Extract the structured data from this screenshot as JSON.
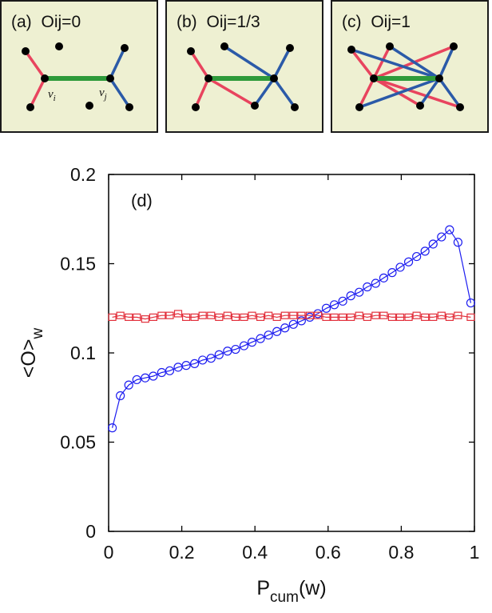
{
  "panels": [
    {
      "label": "(a)",
      "overlap_label": "Oij=0",
      "overlap": 0,
      "node_i_label": "v",
      "node_i_sub": "i",
      "node_j_label": "v",
      "node_j_sub": "j"
    },
    {
      "label": "(b)",
      "overlap_label": "Oij=1/3",
      "overlap": 0.3333
    },
    {
      "label": "(c)",
      "overlap_label": "Oij=1",
      "overlap": 1
    }
  ],
  "colors": {
    "panel_bg": "#eef0d2",
    "central_edge": "#2e9a3a",
    "node_i_edges": "#e8445e",
    "node_j_edges": "#2b5aa8",
    "series_1": "#1d1df0",
    "series_2": "#e2303c"
  },
  "chart_data": {
    "type": "line",
    "panel_label": "(d)",
    "xlabel": "P",
    "xlabel_sub": "cum",
    "xlabel_suffix": "(w)",
    "ylabel": "<O>",
    "ylabel_sub": "w",
    "xlim": [
      0,
      1
    ],
    "ylim": [
      0,
      0.2
    ],
    "xticks": [
      0,
      0.2,
      0.4,
      0.6,
      0.8,
      1
    ],
    "xtick_labels": [
      "0",
      "0.2",
      "0.4",
      "0.6",
      "0.8",
      "1"
    ],
    "yticks": [
      0,
      0.05,
      0.1,
      0.15,
      0.2
    ],
    "ytick_labels": [
      "0",
      "0.05",
      "0.1",
      "0.15",
      "0.2"
    ],
    "grid": false,
    "series": [
      {
        "marker": "circle",
        "color": "#1d1df0",
        "x": [
          0.01,
          0.032,
          0.055,
          0.077,
          0.1,
          0.122,
          0.145,
          0.167,
          0.19,
          0.212,
          0.235,
          0.257,
          0.28,
          0.302,
          0.325,
          0.347,
          0.37,
          0.392,
          0.415,
          0.437,
          0.46,
          0.482,
          0.505,
          0.527,
          0.55,
          0.572,
          0.595,
          0.617,
          0.64,
          0.662,
          0.685,
          0.707,
          0.73,
          0.752,
          0.775,
          0.797,
          0.82,
          0.842,
          0.865,
          0.887,
          0.91,
          0.932,
          0.955,
          0.99
        ],
        "y": [
          0.058,
          0.076,
          0.082,
          0.085,
          0.086,
          0.087,
          0.089,
          0.09,
          0.092,
          0.093,
          0.094,
          0.096,
          0.097,
          0.099,
          0.101,
          0.102,
          0.104,
          0.106,
          0.108,
          0.11,
          0.112,
          0.114,
          0.116,
          0.118,
          0.12,
          0.122,
          0.125,
          0.127,
          0.129,
          0.132,
          0.134,
          0.137,
          0.139,
          0.142,
          0.145,
          0.148,
          0.151,
          0.154,
          0.157,
          0.161,
          0.165,
          0.169,
          0.162,
          0.128
        ]
      },
      {
        "marker": "square",
        "color": "#e2303c",
        "x": [
          0.01,
          0.032,
          0.055,
          0.077,
          0.1,
          0.122,
          0.145,
          0.167,
          0.19,
          0.212,
          0.235,
          0.257,
          0.28,
          0.302,
          0.325,
          0.347,
          0.37,
          0.392,
          0.415,
          0.437,
          0.46,
          0.482,
          0.505,
          0.527,
          0.55,
          0.572,
          0.595,
          0.617,
          0.64,
          0.662,
          0.685,
          0.707,
          0.73,
          0.752,
          0.775,
          0.797,
          0.82,
          0.842,
          0.865,
          0.887,
          0.91,
          0.932,
          0.955,
          0.99
        ],
        "y": [
          0.12,
          0.121,
          0.12,
          0.12,
          0.119,
          0.12,
          0.121,
          0.121,
          0.122,
          0.12,
          0.12,
          0.121,
          0.121,
          0.12,
          0.121,
          0.12,
          0.12,
          0.121,
          0.12,
          0.121,
          0.12,
          0.121,
          0.121,
          0.121,
          0.121,
          0.121,
          0.12,
          0.12,
          0.12,
          0.12,
          0.121,
          0.12,
          0.121,
          0.121,
          0.12,
          0.12,
          0.12,
          0.121,
          0.12,
          0.12,
          0.121,
          0.12,
          0.121,
          0.12
        ]
      }
    ]
  }
}
